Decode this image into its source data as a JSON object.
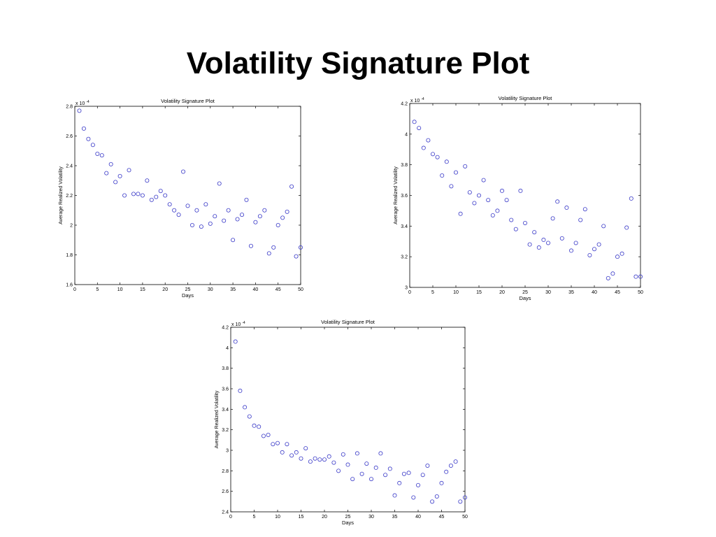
{
  "slide": {
    "title": "Volatility Signature Plot"
  },
  "chart_data": [
    {
      "type": "scatter",
      "title": "Volatility Signature Plot",
      "xlabel": "Days",
      "ylabel": "Average Realized Volatility",
      "exponent_label": "x 10",
      "exponent_power": "-4",
      "xlim": [
        0,
        50
      ],
      "ylim": [
        1.6,
        2.8
      ],
      "xticks": [
        0,
        5,
        10,
        15,
        20,
        25,
        30,
        35,
        40,
        45,
        50
      ],
      "yticks": [
        1.6,
        1.8,
        2.0,
        2.2,
        2.4,
        2.6,
        2.8
      ],
      "ytick_labels": [
        "1.6",
        "1.8",
        "2",
        "2.2",
        "2.4",
        "2.6",
        "2.8"
      ],
      "grid": false,
      "marker_color": "#3a3ac8",
      "x": [
        1,
        2,
        3,
        4,
        5,
        6,
        7,
        8,
        9,
        10,
        11,
        12,
        13,
        14,
        15,
        16,
        17,
        18,
        19,
        20,
        21,
        22,
        23,
        24,
        25,
        26,
        27,
        28,
        29,
        30,
        31,
        32,
        33,
        34,
        35,
        36,
        37,
        38,
        39,
        40,
        41,
        42,
        43,
        44,
        45,
        46,
        47,
        48,
        49,
        50
      ],
      "y": [
        2.77,
        2.65,
        2.58,
        2.54,
        2.48,
        2.47,
        2.35,
        2.41,
        2.29,
        2.33,
        2.2,
        2.37,
        2.21,
        2.21,
        2.2,
        2.3,
        2.17,
        2.19,
        2.23,
        2.2,
        2.14,
        2.1,
        2.07,
        2.36,
        2.13,
        2.0,
        2.1,
        1.99,
        2.14,
        2.01,
        2.06,
        2.28,
        2.03,
        2.1,
        1.9,
        2.04,
        2.07,
        2.17,
        1.86,
        2.02,
        2.06,
        2.1,
        1.81,
        1.85,
        2.0,
        2.05,
        2.09,
        2.26,
        1.79,
        1.85
      ]
    },
    {
      "type": "scatter",
      "title": "Volatility Signature Plot",
      "xlabel": "Days",
      "ylabel": "Average Realized Volatility",
      "exponent_label": "x 10",
      "exponent_power": "-4",
      "xlim": [
        0,
        50
      ],
      "ylim": [
        3.0,
        4.2
      ],
      "xticks": [
        0,
        5,
        10,
        15,
        20,
        25,
        30,
        35,
        40,
        45,
        50
      ],
      "yticks": [
        3.0,
        3.2,
        3.4,
        3.6,
        3.8,
        4.0,
        4.2
      ],
      "ytick_labels": [
        "3",
        "3.2",
        "3.4",
        "3.6",
        "3.8",
        "4",
        "4.2"
      ],
      "grid": false,
      "marker_color": "#3a3ac8",
      "x": [
        1,
        2,
        3,
        4,
        5,
        6,
        7,
        8,
        9,
        10,
        11,
        12,
        13,
        14,
        15,
        16,
        17,
        18,
        19,
        20,
        21,
        22,
        23,
        24,
        25,
        26,
        27,
        28,
        29,
        30,
        31,
        32,
        33,
        34,
        35,
        36,
        37,
        38,
        39,
        40,
        41,
        42,
        43,
        44,
        45,
        46,
        47,
        48,
        49,
        50
      ],
      "y": [
        4.08,
        4.04,
        3.91,
        3.96,
        3.87,
        3.85,
        3.73,
        3.82,
        3.66,
        3.75,
        3.48,
        3.79,
        3.62,
        3.55,
        3.6,
        3.7,
        3.57,
        3.47,
        3.5,
        3.63,
        3.57,
        3.44,
        3.38,
        3.63,
        3.42,
        3.28,
        3.36,
        3.26,
        3.31,
        3.29,
        3.45,
        3.56,
        3.32,
        3.52,
        3.24,
        3.29,
        3.44,
        3.51,
        3.21,
        3.25,
        3.28,
        3.4,
        3.06,
        3.09,
        3.2,
        3.22,
        3.39,
        3.58,
        3.07,
        3.07
      ]
    },
    {
      "type": "scatter",
      "title": "Volatility Signature Plot",
      "xlabel": "Days",
      "ylabel": "Average Realized Volatility",
      "exponent_label": "x 10",
      "exponent_power": "-4",
      "xlim": [
        0,
        50
      ],
      "ylim": [
        2.4,
        4.2
      ],
      "xticks": [
        0,
        5,
        10,
        15,
        20,
        25,
        30,
        35,
        40,
        45,
        50
      ],
      "yticks": [
        2.4,
        2.6,
        2.8,
        3.0,
        3.2,
        3.4,
        3.6,
        3.8,
        4.0,
        4.2
      ],
      "ytick_labels": [
        "2.4",
        "2.6",
        "2.8",
        "3",
        "3.2",
        "3.4",
        "3.6",
        "3.8",
        "4",
        "4.2"
      ],
      "grid": false,
      "marker_color": "#3a3ac8",
      "x": [
        1,
        2,
        3,
        4,
        5,
        6,
        7,
        8,
        9,
        10,
        11,
        12,
        13,
        14,
        15,
        16,
        17,
        18,
        19,
        20,
        21,
        22,
        23,
        24,
        25,
        26,
        27,
        28,
        29,
        30,
        31,
        32,
        33,
        34,
        35,
        36,
        37,
        38,
        39,
        40,
        41,
        42,
        43,
        44,
        45,
        46,
        47,
        48,
        49,
        50
      ],
      "y": [
        4.06,
        3.58,
        3.42,
        3.33,
        3.24,
        3.23,
        3.14,
        3.15,
        3.06,
        3.07,
        2.98,
        3.06,
        2.95,
        2.98,
        2.92,
        3.02,
        2.89,
        2.92,
        2.91,
        2.91,
        2.94,
        2.88,
        2.8,
        2.96,
        2.86,
        2.72,
        2.97,
        2.77,
        2.87,
        2.72,
        2.83,
        2.97,
        2.76,
        2.82,
        2.56,
        2.68,
        2.77,
        2.78,
        2.54,
        2.66,
        2.76,
        2.85,
        2.5,
        2.55,
        2.68,
        2.79,
        2.85,
        2.89,
        2.5,
        2.54
      ]
    }
  ]
}
